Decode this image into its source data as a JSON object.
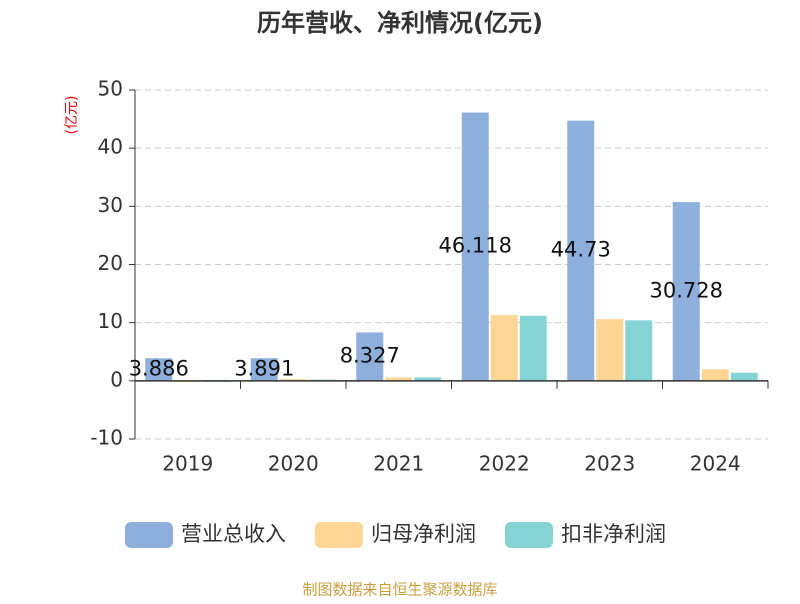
{
  "chart_data": {
    "type": "bar",
    "title": "历年营收、净利情况(亿元)",
    "y_label": "(亿元)",
    "source": "制图数据来自恒生聚源数据库",
    "categories": [
      "2019",
      "2020",
      "2021",
      "2022",
      "2023",
      "2024"
    ],
    "series": [
      {
        "name": "营业总收入",
        "color": "#8eaedb",
        "values": [
          3.886,
          3.891,
          8.327,
          46.118,
          44.73,
          30.728
        ],
        "show_labels": true
      },
      {
        "name": "归母净利润",
        "color": "#fed595",
        "values": [
          -0.2,
          0.3,
          0.6,
          11.3,
          10.6,
          2.0
        ]
      },
      {
        "name": "扣非净利润",
        "color": "#86d3d5",
        "values": [
          -0.2,
          0.2,
          0.6,
          11.2,
          10.4,
          1.4
        ]
      }
    ],
    "ylim": [
      -10,
      50
    ],
    "yticks": [
      -10,
      0,
      10,
      20,
      30,
      40,
      50
    ],
    "grid": true
  }
}
